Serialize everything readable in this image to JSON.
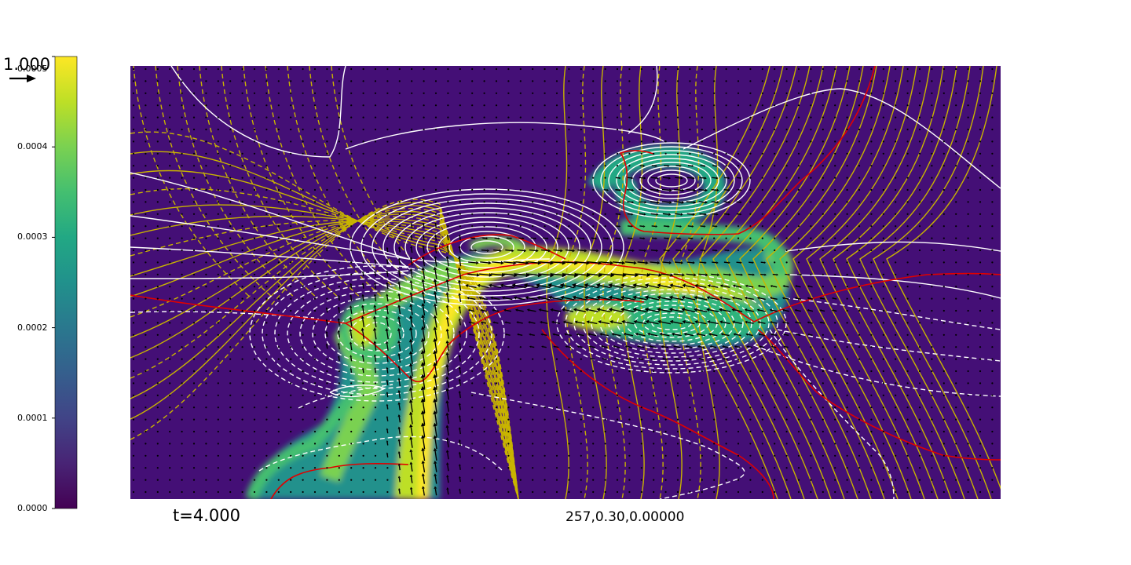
{
  "chart_data": {
    "type": "heatmap",
    "description_free": true,
    "colormap": "viridis",
    "colorbar": {
      "ticks": [
        "0.0000",
        "0.0001",
        "0.0002",
        "0.0003",
        "0.0004",
        "0.0005"
      ],
      "tick_values": [
        0.0,
        0.0001,
        0.0002,
        0.0003,
        0.0004,
        0.0005
      ],
      "range": [
        0.0,
        0.0005
      ]
    },
    "reference_arrow": {
      "value": "1.000"
    },
    "annotations": {
      "time": "t=4.000",
      "run": "257,0.30,0.00000"
    },
    "overlays": {
      "solid_white_contours": true,
      "dashed_white_contours": true,
      "yellow_contours": true,
      "red_contours": true,
      "velocity_arrows": true
    },
    "colors": {
      "background_field": "#440f76",
      "high_field": "#fde725",
      "contour_white": "#ffffff",
      "contour_yellow": "#c8b400",
      "contour_red": "#e00000",
      "arrow": "#000000"
    }
  }
}
